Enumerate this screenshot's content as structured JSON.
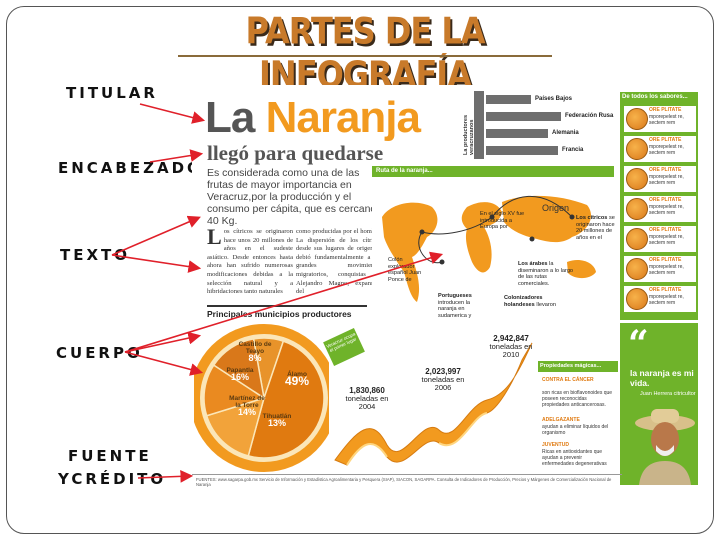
{
  "slide": {
    "title": "PARTES DE LA INFOGRAFÍA"
  },
  "labels": {
    "titular": "TITULAR",
    "encabezado": "ENCABEZADO",
    "texto": "TEXTO",
    "cuerpo": "CUERPO",
    "fuente_1": "FUENTE",
    "fuente_2": "YCRÉDITO"
  },
  "infographic": {
    "headline_a": "La ",
    "headline_b": "Naranja",
    "deck": "llegó para quedarse",
    "intro": "Es considerada como una de las frutas de mayor importancia en Veracruz,por la producción y el consumo per cápita, que es cercano a 40 Kg.",
    "body_left": "os cítricos se originaron hace unos 20 millones de años en el sudeste asiático. Desde entonces hasta ahora han sufrido numerosas modificaciones debidas a la selección natural y a hibridaciones tanto naturales",
    "body_left_dropcap": "L",
    "body_right": "como producidas por el hombre. La dispersión de los cítricos desde sus lugares de origen se debió fundamentalmente a los grandes movimientos migratorios, conquistas de Alejandro Magno, expansión del",
    "municipios_title": "Principales municipios productores",
    "bar_axis": "La productores veracruzanos",
    "countries": [
      {
        "name": "Países Bajos",
        "value": 0.45
      },
      {
        "name": "Federación Rusa",
        "value": 0.75
      },
      {
        "name": "Alemania",
        "value": 0.62
      },
      {
        "name": "Francia",
        "value": 0.72
      }
    ],
    "route_head": "Ruta de la naranja...",
    "origen": "Origen",
    "map_notes": {
      "xv": "En el siglo XV fue introducida a Europa por",
      "citricos_b": "Los cítricos",
      "citricos": "se originaron hace 20 millones de años en el",
      "arabes_b": "Los árabes",
      "arabes": "la diseminaron a lo largo de las rutas comerciales.",
      "colon": "Colón explorador español Juan Ponce de",
      "portugueses_b": "Portugueses",
      "portugueses": "introducen la naranja en sudamerica y",
      "colonizadores_b": "Colonizadores holandeses",
      "colonizadores": "llevaron"
    },
    "sidebar_head": "De todos los sabores...",
    "fruit_items": [
      {
        "name": "ORE PLITATE",
        "desc": "mporepelest re, sectem rem"
      },
      {
        "name": "ORE PLITATE",
        "desc": "mporepelest re, sectem rem"
      },
      {
        "name": "ORE PLITATE",
        "desc": "mporepelest re, sectem rem"
      },
      {
        "name": "ORE PLITATE",
        "desc": "mporepelest re, sectem rem"
      },
      {
        "name": "ORE PLITATE",
        "desc": "mporepelest re, sectem rem"
      },
      {
        "name": "ORE PLITATE",
        "desc": "mporepelest re, sectem rem"
      },
      {
        "name": "ORE PLITATE",
        "desc": "mporepelest re, sectem rem"
      }
    ],
    "quote": "la naranja es mi vida.",
    "quote_author": "Juan Herrera citricultor",
    "props_head": "Propiedades mágicas...",
    "props": [
      {
        "title": "CONTRA EL CÁNCER",
        "desc": "son ricas en bioflavonoides que poseen reconocidas propiedades anticancerosas."
      },
      {
        "title": "ADELGAZANTE",
        "desc": "ayudan a eliminar líquidos del organismo"
      },
      {
        "title": "JUVENTUD",
        "desc": "Ricas en antioxidantes que ayudan a prevenir enfermedades degenerativas"
      }
    ],
    "production": [
      {
        "value": "1,830,860",
        "text": "toneladas en 2004"
      },
      {
        "value": "2,023,997",
        "text": "toneladas en 2006"
      },
      {
        "value": "2,942,847",
        "text": "toneladas en 2010"
      }
    ],
    "pie": [
      {
        "name": "Castillo de Teayo",
        "pct": "8%"
      },
      {
        "name": "Álamo",
        "pct": "49%"
      },
      {
        "name": "Papantla",
        "pct": "16%"
      },
      {
        "name": "Martínez de la Torre",
        "pct": "14%"
      },
      {
        "name": "Tihuatlán",
        "pct": "13%"
      }
    ],
    "green_tag": "Veracruz ocupa el primer lugar",
    "fuentes": "FUENTES: www.sagarpa.gob.mx Servicio de Información y Estadística Agroalimentaria y Pesquera (SIAP), SIACON, SAGARPA. Consulta de Indicadores de Producción, Precios y Márgenes de Comercialización Nacional de Naranja"
  },
  "colors": {
    "orange": "#f29a1f",
    "green": "#6fb32a",
    "arrow": "#e0202a"
  }
}
